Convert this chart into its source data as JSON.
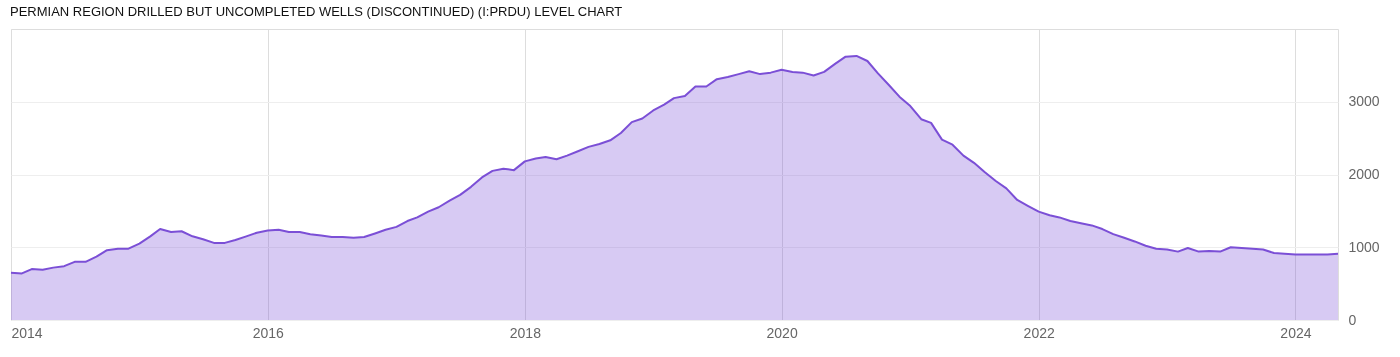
{
  "chart_data": {
    "type": "area",
    "title": "PERMIAN REGION DRILLED BUT UNCOMPLETED WELLS (DISCONTINUED) (I:PRDU) LEVEL CHART",
    "x": [
      "2014-01",
      "2014-02",
      "2014-03",
      "2014-04",
      "2014-05",
      "2014-06",
      "2014-07",
      "2014-08",
      "2014-09",
      "2014-10",
      "2014-11",
      "2014-12",
      "2015-01",
      "2015-02",
      "2015-03",
      "2015-04",
      "2015-05",
      "2015-06",
      "2015-07",
      "2015-08",
      "2015-09",
      "2015-10",
      "2015-11",
      "2015-12",
      "2016-01",
      "2016-02",
      "2016-03",
      "2016-04",
      "2016-05",
      "2016-06",
      "2016-07",
      "2016-08",
      "2016-09",
      "2016-10",
      "2016-11",
      "2016-12",
      "2017-01",
      "2017-02",
      "2017-03",
      "2017-04",
      "2017-05",
      "2017-06",
      "2017-07",
      "2017-08",
      "2017-09",
      "2017-10",
      "2017-11",
      "2017-12",
      "2018-01",
      "2018-02",
      "2018-03",
      "2018-04",
      "2018-05",
      "2018-06",
      "2018-07",
      "2018-08",
      "2018-09",
      "2018-10",
      "2018-11",
      "2018-12",
      "2019-01",
      "2019-02",
      "2019-03",
      "2019-04",
      "2019-05",
      "2019-06",
      "2019-07",
      "2019-08",
      "2019-09",
      "2019-10",
      "2019-11",
      "2019-12",
      "2020-01",
      "2020-02",
      "2020-03",
      "2020-04",
      "2020-05",
      "2020-06",
      "2020-07",
      "2020-08",
      "2020-09",
      "2020-10",
      "2020-11",
      "2020-12",
      "2021-01",
      "2021-02",
      "2021-03",
      "2021-04",
      "2021-05",
      "2021-06",
      "2021-07",
      "2021-08",
      "2021-09",
      "2021-10",
      "2021-11",
      "2021-12",
      "2022-01",
      "2022-02",
      "2022-03",
      "2022-04",
      "2022-05",
      "2022-06",
      "2022-07",
      "2022-08",
      "2022-09",
      "2022-10",
      "2022-11",
      "2022-12",
      "2023-01",
      "2023-02",
      "2023-03",
      "2023-04",
      "2023-05",
      "2023-06",
      "2023-07",
      "2023-08",
      "2023-09",
      "2023-10",
      "2023-11",
      "2023-12",
      "2024-01",
      "2024-02",
      "2024-03",
      "2024-04",
      "2024-05"
    ],
    "series": [
      {
        "color": "#7b4fd6",
        "values": [
          650,
          640,
          700,
          690,
          720,
          740,
          800,
          800,
          870,
          960,
          980,
          980,
          1050,
          1150,
          1250,
          1210,
          1220,
          1150,
          1110,
          1060,
          1060,
          1100,
          1150,
          1200,
          1230,
          1240,
          1210,
          1210,
          1180,
          1160,
          1140,
          1140,
          1130,
          1140,
          1190,
          1240,
          1280,
          1360,
          1410,
          1490,
          1550,
          1640,
          1720,
          1830,
          1960,
          2050,
          2080,
          2060,
          2180,
          2220,
          2240,
          2210,
          2260,
          2320,
          2380,
          2420,
          2470,
          2570,
          2720,
          2770,
          2880,
          2960,
          3050,
          3080,
          3210,
          3210,
          3310,
          3340,
          3380,
          3420,
          3380,
          3400,
          3440,
          3410,
          3400,
          3360,
          3410,
          3520,
          3620,
          3630,
          3560,
          3390,
          3230,
          3070,
          2940,
          2760,
          2710,
          2480,
          2410,
          2260,
          2160,
          2030,
          1910,
          1810,
          1650,
          1570,
          1490,
          1440,
          1410,
          1360,
          1330,
          1300,
          1250,
          1180,
          1130,
          1080,
          1020,
          980,
          970,
          940,
          990,
          940,
          950,
          940,
          1000,
          990,
          980,
          970,
          920,
          910,
          900,
          900,
          900,
          900,
          910
        ]
      }
    ],
    "xlim": [
      "2014-01",
      "2024-05"
    ],
    "xticks": [
      "2014",
      "2016",
      "2018",
      "2020",
      "2022",
      "2024"
    ],
    "ylim": [
      0,
      4000
    ],
    "yticks": [
      0,
      1000,
      2000,
      3000
    ],
    "grid": true
  }
}
